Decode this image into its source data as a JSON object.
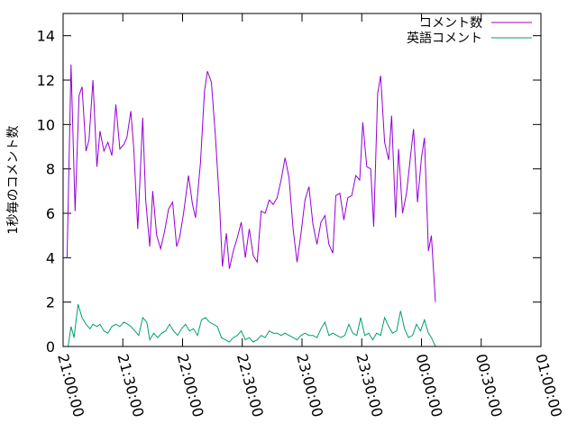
{
  "chart_data": {
    "type": "line",
    "ylabel": "1秒毎のコメント数",
    "xlabel": "",
    "ylim": [
      0,
      15
    ],
    "xlim": [
      "21:00:00",
      "01:00:00"
    ],
    "y_ticks": [
      "0",
      "2",
      "4",
      "6",
      "8",
      "10",
      "12",
      "14"
    ],
    "x_ticks": [
      "21:00:00",
      "21:30:00",
      "22:00:00",
      "22:30:00",
      "23:00:00",
      "23:30:00",
      "00:00:00",
      "00:30:00",
      "01:00:00"
    ],
    "grid": false,
    "legend_position": "top-right",
    "series": [
      {
        "name": "コメント数",
        "color": "#9400d3",
        "points": [
          [
            "21:02:00",
            4.0
          ],
          [
            "21:04:00",
            12.7
          ],
          [
            "21:06:00",
            6.1
          ],
          [
            "21:08:00",
            11.3
          ],
          [
            "21:09:30",
            11.7
          ],
          [
            "21:11:30",
            8.8
          ],
          [
            "21:13:00",
            9.3
          ],
          [
            "21:15:00",
            12.0
          ],
          [
            "21:17:00",
            8.1
          ],
          [
            "21:18:30",
            9.7
          ],
          [
            "21:20:30",
            8.8
          ],
          [
            "21:22:30",
            9.2
          ],
          [
            "21:24:30",
            8.6
          ],
          [
            "21:26:30",
            10.9
          ],
          [
            "21:28:30",
            8.9
          ],
          [
            "21:30:30",
            9.1
          ],
          [
            "21:32:00",
            9.4
          ],
          [
            "21:34:00",
            10.6
          ],
          [
            "21:35:30",
            8.9
          ],
          [
            "21:37:30",
            5.3
          ],
          [
            "21:40:00",
            10.3
          ],
          [
            "21:41:30",
            6.6
          ],
          [
            "21:43:30",
            4.5
          ],
          [
            "21:45:00",
            7.0
          ],
          [
            "21:47:00",
            5.0
          ],
          [
            "21:49:00",
            4.4
          ],
          [
            "21:51:00",
            5.2
          ],
          [
            "21:53:00",
            6.2
          ],
          [
            "21:55:00",
            6.5
          ],
          [
            "21:57:00",
            4.5
          ],
          [
            "21:58:30",
            4.9
          ],
          [
            "22:00:30",
            6.0
          ],
          [
            "22:03:00",
            7.7
          ],
          [
            "22:05:00",
            6.4
          ],
          [
            "22:06:30",
            5.8
          ],
          [
            "22:09:00",
            8.3
          ],
          [
            "22:11:00",
            11.5
          ],
          [
            "22:12:30",
            12.4
          ],
          [
            "22:14:30",
            11.9
          ],
          [
            "22:16:30",
            9.5
          ],
          [
            "22:18:30",
            6.5
          ],
          [
            "22:20:00",
            3.6
          ],
          [
            "22:22:00",
            5.1
          ],
          [
            "22:23:30",
            3.5
          ],
          [
            "22:25:30",
            4.3
          ],
          [
            "22:27:30",
            4.9
          ],
          [
            "22:29:30",
            5.6
          ],
          [
            "22:31:30",
            4.0
          ],
          [
            "22:33:30",
            5.3
          ],
          [
            "22:35:30",
            4.1
          ],
          [
            "22:37:30",
            3.8
          ],
          [
            "22:39:30",
            6.1
          ],
          [
            "22:41:30",
            6.0
          ],
          [
            "22:43:30",
            6.6
          ],
          [
            "22:45:30",
            6.4
          ],
          [
            "22:47:30",
            6.7
          ],
          [
            "22:49:30",
            7.5
          ],
          [
            "22:51:30",
            8.5
          ],
          [
            "22:53:30",
            7.6
          ],
          [
            "22:55:30",
            5.3
          ],
          [
            "22:57:30",
            3.8
          ],
          [
            "22:59:30",
            5.1
          ],
          [
            "23:01:30",
            6.6
          ],
          [
            "23:03:30",
            7.2
          ],
          [
            "23:05:30",
            5.5
          ],
          [
            "23:07:30",
            4.6
          ],
          [
            "23:09:30",
            5.6
          ],
          [
            "23:11:30",
            5.9
          ],
          [
            "23:13:30",
            4.6
          ],
          [
            "23:15:30",
            4.2
          ],
          [
            "23:17:00",
            6.8
          ],
          [
            "23:19:00",
            6.9
          ],
          [
            "23:21:00",
            5.7
          ],
          [
            "23:23:00",
            6.7
          ],
          [
            "23:25:00",
            6.8
          ],
          [
            "23:27:00",
            7.7
          ],
          [
            "23:29:00",
            7.5
          ],
          [
            "23:30:30",
            10.1
          ],
          [
            "23:32:30",
            8.1
          ],
          [
            "23:34:30",
            8.0
          ],
          [
            "23:36:00",
            5.4
          ],
          [
            "23:38:00",
            11.4
          ],
          [
            "23:39:30",
            12.2
          ],
          [
            "23:41:30",
            9.2
          ],
          [
            "23:43:30",
            8.4
          ],
          [
            "23:45:00",
            10.4
          ],
          [
            "23:47:00",
            5.8
          ],
          [
            "23:48:30",
            8.9
          ],
          [
            "23:50:30",
            6.0
          ],
          [
            "23:52:30",
            6.9
          ],
          [
            "23:54:30",
            8.6
          ],
          [
            "23:56:00",
            9.8
          ],
          [
            "23:58:00",
            6.5
          ],
          [
            "00:00:00",
            8.5
          ],
          [
            "00:01:30",
            9.4
          ],
          [
            "00:03:30",
            4.3
          ],
          [
            "00:05:00",
            5.0
          ],
          [
            "00:07:00",
            2.0
          ]
        ]
      },
      {
        "name": "英語コメント",
        "color": "#009e73",
        "points": [
          [
            "21:02:30",
            0.0
          ],
          [
            "21:04:00",
            0.9
          ],
          [
            "21:05:30",
            0.4
          ],
          [
            "21:07:30",
            1.9
          ],
          [
            "21:09:30",
            1.3
          ],
          [
            "21:11:30",
            1.0
          ],
          [
            "21:13:30",
            0.8
          ],
          [
            "21:15:00",
            1.0
          ],
          [
            "21:17:00",
            0.9
          ],
          [
            "21:18:30",
            1.0
          ],
          [
            "21:20:30",
            0.7
          ],
          [
            "21:22:30",
            0.6
          ],
          [
            "21:24:30",
            0.9
          ],
          [
            "21:26:30",
            1.0
          ],
          [
            "21:28:30",
            0.9
          ],
          [
            "21:30:30",
            1.1
          ],
          [
            "21:32:30",
            1.0
          ],
          [
            "21:34:00",
            0.9
          ],
          [
            "21:36:00",
            0.7
          ],
          [
            "21:38:00",
            0.5
          ],
          [
            "21:40:00",
            1.3
          ],
          [
            "21:42:00",
            1.1
          ],
          [
            "21:43:30",
            0.3
          ],
          [
            "21:45:30",
            0.6
          ],
          [
            "21:47:30",
            0.4
          ],
          [
            "21:49:30",
            0.6
          ],
          [
            "21:51:30",
            0.7
          ],
          [
            "21:53:30",
            1.0
          ],
          [
            "21:55:30",
            0.7
          ],
          [
            "21:57:30",
            0.5
          ],
          [
            "21:59:30",
            0.8
          ],
          [
            "22:01:30",
            1.0
          ],
          [
            "22:03:30",
            0.7
          ],
          [
            "22:05:30",
            0.8
          ],
          [
            "22:07:30",
            0.5
          ],
          [
            "22:09:30",
            1.2
          ],
          [
            "22:11:30",
            1.3
          ],
          [
            "22:13:30",
            1.1
          ],
          [
            "22:15:30",
            1.0
          ],
          [
            "22:17:30",
            0.9
          ],
          [
            "22:19:30",
            0.4
          ],
          [
            "22:21:30",
            0.3
          ],
          [
            "22:23:30",
            0.2
          ],
          [
            "22:25:30",
            0.4
          ],
          [
            "22:27:30",
            0.5
          ],
          [
            "22:29:30",
            0.7
          ],
          [
            "22:31:30",
            0.3
          ],
          [
            "22:33:30",
            0.4
          ],
          [
            "22:35:30",
            0.2
          ],
          [
            "22:37:30",
            0.3
          ],
          [
            "22:39:30",
            0.5
          ],
          [
            "22:41:30",
            0.4
          ],
          [
            "22:43:30",
            0.7
          ],
          [
            "22:45:30",
            0.6
          ],
          [
            "22:47:30",
            0.6
          ],
          [
            "22:49:30",
            0.5
          ],
          [
            "22:51:30",
            0.6
          ],
          [
            "22:53:30",
            0.5
          ],
          [
            "22:55:30",
            0.4
          ],
          [
            "22:57:30",
            0.3
          ],
          [
            "22:59:30",
            0.5
          ],
          [
            "23:01:30",
            0.6
          ],
          [
            "23:03:30",
            0.5
          ],
          [
            "23:05:30",
            0.5
          ],
          [
            "23:07:30",
            0.4
          ],
          [
            "23:09:30",
            0.8
          ],
          [
            "23:11:30",
            1.1
          ],
          [
            "23:13:30",
            0.5
          ],
          [
            "23:15:30",
            0.6
          ],
          [
            "23:17:30",
            0.5
          ],
          [
            "23:19:30",
            0.4
          ],
          [
            "23:21:30",
            0.5
          ],
          [
            "23:23:30",
            1.0
          ],
          [
            "23:25:30",
            0.6
          ],
          [
            "23:27:30",
            0.5
          ],
          [
            "23:29:30",
            1.3
          ],
          [
            "23:31:30",
            0.5
          ],
          [
            "23:33:30",
            0.6
          ],
          [
            "23:35:30",
            0.3
          ],
          [
            "23:37:30",
            0.6
          ],
          [
            "23:39:30",
            0.5
          ],
          [
            "23:41:30",
            1.3
          ],
          [
            "23:43:30",
            0.9
          ],
          [
            "23:45:30",
            0.6
          ],
          [
            "23:47:30",
            0.7
          ],
          [
            "23:49:30",
            1.6
          ],
          [
            "23:51:30",
            0.8
          ],
          [
            "23:53:30",
            0.4
          ],
          [
            "23:55:30",
            0.5
          ],
          [
            "23:57:30",
            1.0
          ],
          [
            "23:59:30",
            0.7
          ],
          [
            "00:01:30",
            1.2
          ],
          [
            "00:03:30",
            0.6
          ],
          [
            "00:05:00",
            0.4
          ],
          [
            "00:07:00",
            0.0
          ]
        ]
      }
    ]
  }
}
